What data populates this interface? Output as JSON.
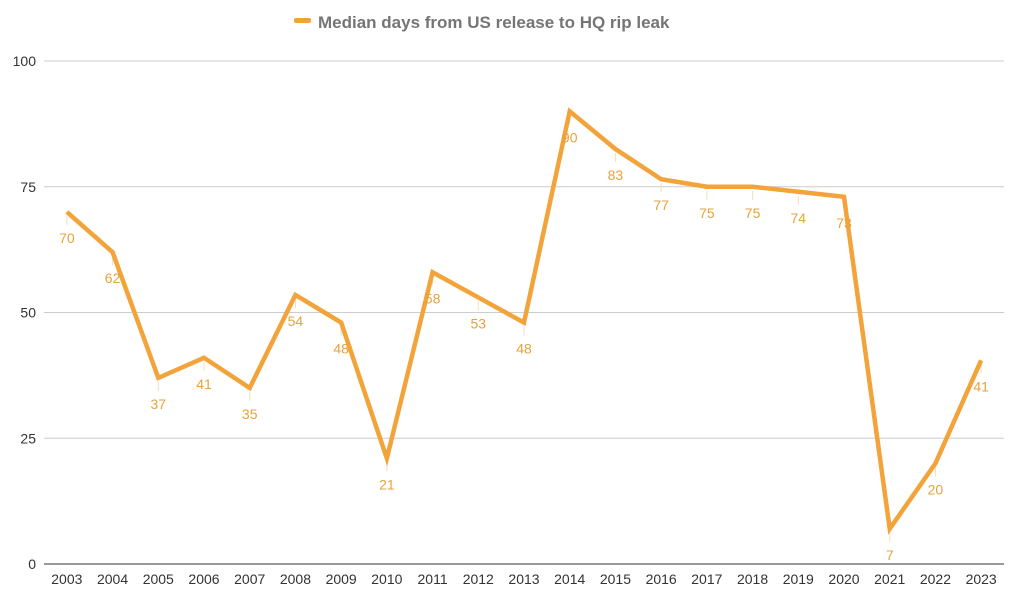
{
  "chart_data": {
    "type": "line",
    "title": "",
    "xlabel": "",
    "ylabel": "",
    "ylim": [
      0,
      100
    ],
    "yticks": [
      0,
      25,
      50,
      75,
      100
    ],
    "grid": true,
    "legend_position": "top",
    "categories": [
      "2003",
      "2004",
      "2005",
      "2006",
      "2007",
      "2008",
      "2009",
      "2010",
      "2011",
      "2012",
      "2013",
      "2014",
      "2015",
      "2016",
      "2017",
      "2018",
      "2019",
      "2020",
      "2021",
      "2022",
      "2023"
    ],
    "series": [
      {
        "name": "Median days from US release to HQ rip leak",
        "values": [
          70,
          62,
          37,
          41,
          35,
          53.5,
          48,
          21,
          58,
          53,
          48,
          90,
          82.5,
          76.5,
          75,
          75,
          74,
          73,
          7,
          20,
          40.5
        ],
        "labels": [
          "70",
          "62",
          "37",
          "41",
          "35",
          "54",
          "48",
          "21",
          "58",
          "53",
          "48",
          "90",
          "83",
          "77",
          "75",
          "75",
          "74",
          "73",
          "7",
          "20",
          "41"
        ],
        "color": "#F2A33A"
      }
    ],
    "colors": {
      "grid": "#CCCCCC",
      "axis": "#333333",
      "label": "#E8A23C",
      "leader": "#F7DDB5"
    }
  }
}
